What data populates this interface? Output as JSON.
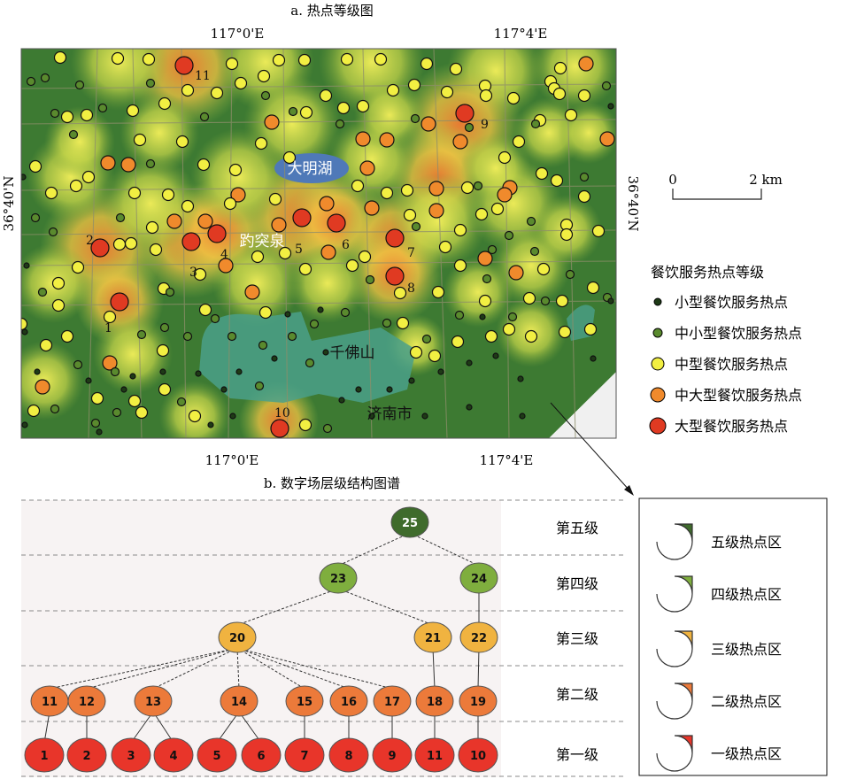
{
  "panel_a": {
    "title": "a. 热点等级图",
    "coords": {
      "top_left": "117°0'E",
      "top_right": "117°4'E",
      "bottom_left": "117°0'E",
      "bottom_right": "117°4'E",
      "left": "36°40'N",
      "right": "36°40'N"
    },
    "place_labels": {
      "lake": "大明湖",
      "spring": "趵突泉",
      "mountain": "千佛山",
      "city": "济南市"
    },
    "hotspot_numbers": [
      "1",
      "2",
      "3",
      "4",
      "5",
      "6",
      "7",
      "8",
      "9",
      "10",
      "11"
    ],
    "scale": {
      "start": "0",
      "end": "2 km"
    },
    "legend": {
      "title": "餐饮服务热点等级",
      "items": [
        {
          "label": "小型餐饮服务热点",
          "color": "#1e3a16"
        },
        {
          "label": "中小型餐饮服务热点",
          "color": "#5a8a2e"
        },
        {
          "label": "中型餐饮服务热点",
          "color": "#f2ef42"
        },
        {
          "label": "中大型餐饮服务热点",
          "color": "#f08a2c"
        },
        {
          "label": "大型餐饮服务热点",
          "color": "#e03a22"
        }
      ]
    }
  },
  "panel_b": {
    "title": "b. 数字场层级结构图谱",
    "levels": [
      "第五级",
      "第四级",
      "第三级",
      "第二级",
      "第一级"
    ],
    "rows": [
      [
        "25"
      ],
      [
        "23",
        "24"
      ],
      [
        "20",
        "21",
        "22"
      ],
      [
        "11",
        "12",
        "13",
        "14",
        "15",
        "16",
        "17",
        "18",
        "19"
      ],
      [
        "1",
        "2",
        "3",
        "4",
        "5",
        "6",
        "7",
        "8",
        "9",
        "11",
        "10"
      ]
    ],
    "legend": [
      {
        "label": "五级热点区",
        "color": "#3f6b2c"
      },
      {
        "label": "四级热点区",
        "color": "#7fae3e"
      },
      {
        "label": "三级热点区",
        "color": "#f0b340"
      },
      {
        "label": "二级热点区",
        "color": "#ec7a3a"
      },
      {
        "label": "一级热点区",
        "color": "#e8352a"
      }
    ]
  }
}
